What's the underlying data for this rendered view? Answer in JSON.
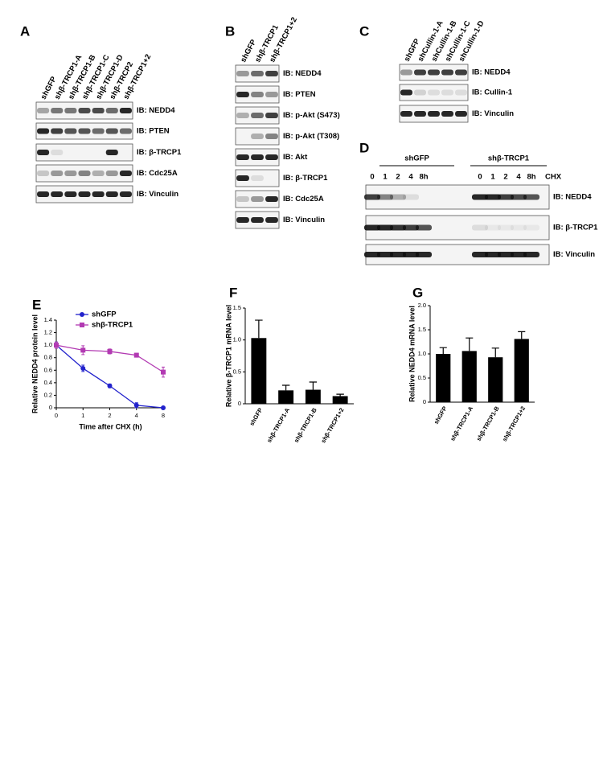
{
  "panels": {
    "A": {
      "label": "A",
      "lanes": [
        "shGFP",
        "shβ-TRCP1-A",
        "shβ-TRCP1-B",
        "shβ-TRCP1-C",
        "shβ-TRCP1-D",
        "shβ-TRCP2",
        "shβ-TRCP1+2"
      ],
      "blots": [
        "IB: NEDD4",
        "IB: PTEN",
        "IB: β-TRCP1",
        "IB: Cdc25A",
        "IB: Vinculin"
      ]
    },
    "B": {
      "label": "B",
      "lanes": [
        "shGFP",
        "shβ-TRCP1",
        "shβ-TRCP1+2"
      ],
      "blots": [
        "IB: NEDD4",
        "IB: PTEN",
        "IB: p-Akt (S473)",
        "IB: p-Akt (T308)",
        "IB: Akt",
        "IB: β-TRCP1",
        "IB: Cdc25A",
        "IB: Vinculin"
      ]
    },
    "C": {
      "label": "C",
      "lanes": [
        "shGFP",
        "shCullin-1-A",
        "shCullin-1-B",
        "shCullin-1-C",
        "shCullin-1-D"
      ],
      "blots": [
        "IB: NEDD4",
        "IB: Cullin-1",
        "IB: Vinculin"
      ]
    },
    "D": {
      "label": "D",
      "groups": [
        "shGFP",
        "shβ-TRCP1"
      ],
      "times": [
        "0",
        "1",
        "2",
        "4",
        "8h",
        "0",
        "1",
        "2",
        "4",
        "8h"
      ],
      "treatment": "CHX",
      "blots": [
        "IB: NEDD4",
        "IB: β-TRCP1",
        "IB: Vinculin"
      ]
    }
  },
  "chart_data": [
    {
      "type": "line",
      "panel_label": "E",
      "ylabel": "Relative NEDD4 protein level",
      "xlabel": "Time after CHX (h)",
      "categories": [
        "0",
        "1",
        "2",
        "4",
        "8"
      ],
      "series": [
        {
          "name": "shGFP",
          "color": "#2222cc",
          "marker": "circle",
          "values": [
            1.0,
            0.63,
            0.35,
            0.04,
            0.0
          ],
          "errors": [
            0.05,
            0.05,
            0.03,
            0.04,
            0.01
          ]
        },
        {
          "name": "shβ-TRCP1",
          "color": "#b23ab2",
          "marker": "square",
          "values": [
            1.0,
            0.92,
            0.9,
            0.84,
            0.57
          ],
          "errors": [
            0.05,
            0.07,
            0.04,
            0.03,
            0.08
          ]
        }
      ],
      "ylim": [
        0,
        1.4
      ],
      "yticks": [
        0,
        0.2,
        0.4,
        0.6,
        0.8,
        {
          "value": 1.0,
          "label": "1.0"
        },
        1.2,
        1.4
      ],
      "legend": "top-center"
    },
    {
      "type": "bar",
      "panel_label": "F",
      "ylabel": "Relative β-TRCP1 mRNA level",
      "categories": [
        "shGFP",
        "shβ-TRCP1-A",
        "shβ-TRCP1-B",
        "shβ-TRCP1+2"
      ],
      "values": [
        1.03,
        0.21,
        0.22,
        0.12
      ],
      "errors": [
        0.28,
        0.08,
        0.12,
        0.03
      ],
      "color": "#000000",
      "ylim": [
        0,
        1.5
      ],
      "yticks": [
        0,
        0.5,
        {
          "value": 1.0,
          "label": "1.0"
        },
        1.5
      ]
    },
    {
      "type": "bar",
      "panel_label": "G",
      "ylabel": "Relative NEDD4 mRNA level",
      "categories": [
        "shGFP",
        "shβ-TRCP1-A",
        "shβ-TRCP1-B",
        "shβ-TRCP1+2"
      ],
      "values": [
        1.0,
        1.06,
        0.93,
        1.31
      ],
      "errors": [
        0.13,
        0.27,
        0.19,
        0.15
      ],
      "color": "#000000",
      "ylim": [
        0,
        2.0
      ],
      "yticks": [
        0,
        0.5,
        {
          "value": 1.0,
          "label": "1.0"
        },
        {
          "value": 1.5,
          "label": "1.5"
        },
        {
          "value": 2.0,
          "label": "2.0"
        }
      ]
    }
  ]
}
